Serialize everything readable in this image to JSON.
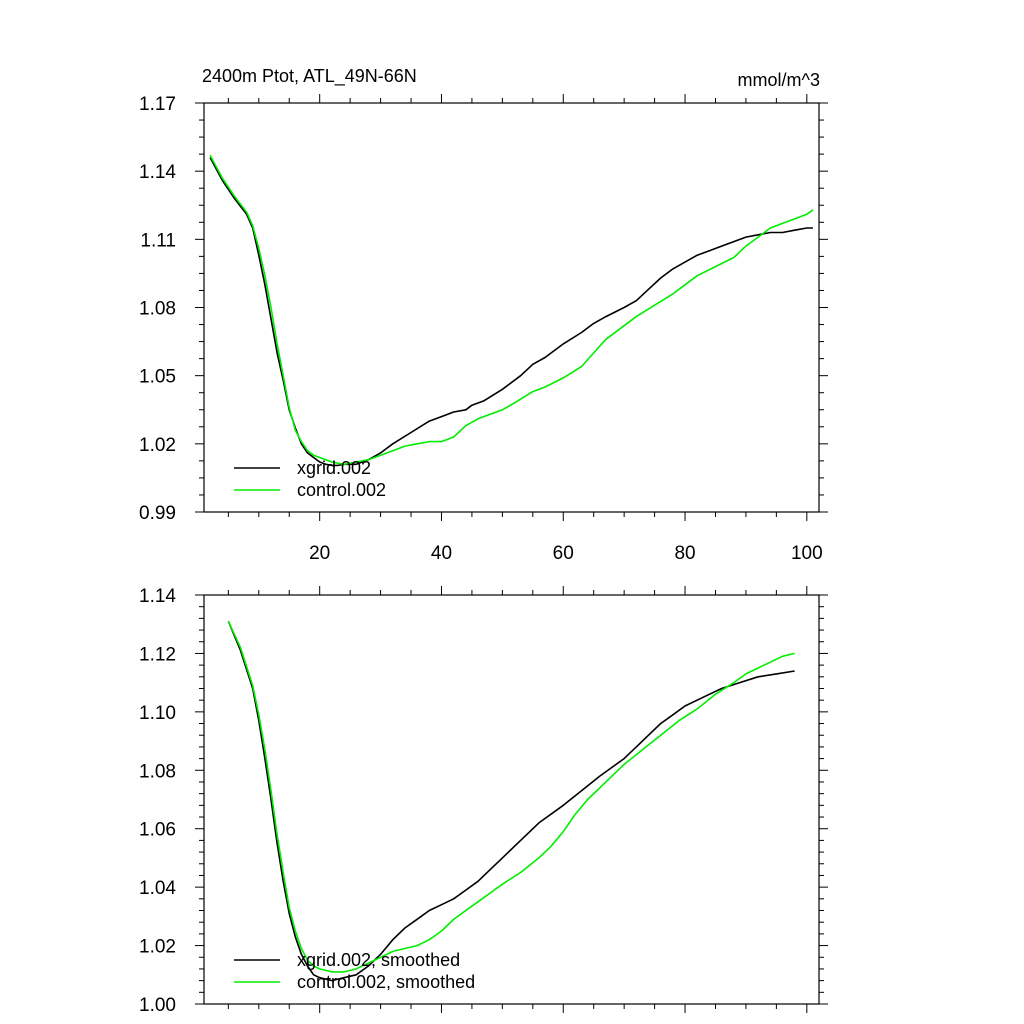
{
  "chart_data": [
    {
      "type": "line",
      "title": "2400m Ptot, ATL_49N-66N",
      "units": "mmol/m^3",
      "xlim": [
        1,
        102
      ],
      "ylim": [
        0.99,
        1.17
      ],
      "xticks": [
        20,
        40,
        60,
        80,
        100
      ],
      "yticks": [
        0.99,
        1.02,
        1.05,
        1.08,
        1.11,
        1.14,
        1.17
      ],
      "ytick_labels": [
        "0.99",
        "1.02",
        "1.05",
        "1.08",
        "1.11",
        "1.14",
        "1.17"
      ],
      "legend_position": "bottom-left",
      "series": [
        {
          "name": "xgrid.002",
          "color": "#000000",
          "points": [
            [
              2,
              1.146
            ],
            [
              4,
              1.136
            ],
            [
              6,
              1.128
            ],
            [
              8,
              1.121
            ],
            [
              9,
              1.115
            ],
            [
              10,
              1.103
            ],
            [
              11,
              1.09
            ],
            [
              12,
              1.075
            ],
            [
              13,
              1.06
            ],
            [
              14,
              1.048
            ],
            [
              15,
              1.035
            ],
            [
              16,
              1.027
            ],
            [
              17,
              1.02
            ],
            [
              18,
              1.016
            ],
            [
              19,
              1.014
            ],
            [
              20,
              1.012
            ],
            [
              21,
              1.011
            ],
            [
              22,
              1.0105
            ],
            [
              23,
              1.0105
            ],
            [
              24,
              1.011
            ],
            [
              26,
              1.011
            ],
            [
              28,
              1.013
            ],
            [
              30,
              1.016
            ],
            [
              32,
              1.02
            ],
            [
              35,
              1.025
            ],
            [
              38,
              1.03
            ],
            [
              40,
              1.032
            ],
            [
              42,
              1.034
            ],
            [
              44,
              1.035
            ],
            [
              45,
              1.037
            ],
            [
              47,
              1.039
            ],
            [
              50,
              1.044
            ],
            [
              53,
              1.05
            ],
            [
              55,
              1.055
            ],
            [
              57,
              1.058
            ],
            [
              60,
              1.064
            ],
            [
              63,
              1.069
            ],
            [
              65,
              1.073
            ],
            [
              67,
              1.076
            ],
            [
              70,
              1.08
            ],
            [
              72,
              1.083
            ],
            [
              74,
              1.088
            ],
            [
              76,
              1.093
            ],
            [
              78,
              1.097
            ],
            [
              80,
              1.1
            ],
            [
              82,
              1.103
            ],
            [
              84,
              1.105
            ],
            [
              86,
              1.107
            ],
            [
              88,
              1.109
            ],
            [
              90,
              1.111
            ],
            [
              92,
              1.112
            ],
            [
              94,
              1.113
            ],
            [
              96,
              1.113
            ],
            [
              98,
              1.114
            ],
            [
              100,
              1.115
            ],
            [
              101,
              1.115
            ]
          ]
        },
        {
          "name": "control.002",
          "color": "#00ee00",
          "points": [
            [
              2,
              1.147
            ],
            [
              4,
              1.137
            ],
            [
              6,
              1.129
            ],
            [
              8,
              1.122
            ],
            [
              9,
              1.116
            ],
            [
              10,
              1.106
            ],
            [
              11,
              1.094
            ],
            [
              12,
              1.08
            ],
            [
              13,
              1.064
            ],
            [
              14,
              1.05
            ],
            [
              15,
              1.036
            ],
            [
              16,
              1.026
            ],
            [
              17,
              1.021
            ],
            [
              18,
              1.017
            ],
            [
              19,
              1.015
            ],
            [
              20,
              1.014
            ],
            [
              22,
              1.012
            ],
            [
              24,
              1.011
            ],
            [
              26,
              1.012
            ],
            [
              28,
              1.013
            ],
            [
              30,
              1.015
            ],
            [
              32,
              1.017
            ],
            [
              34,
              1.019
            ],
            [
              36,
              1.02
            ],
            [
              38,
              1.021
            ],
            [
              40,
              1.021
            ],
            [
              42,
              1.023
            ],
            [
              44,
              1.028
            ],
            [
              46,
              1.031
            ],
            [
              48,
              1.033
            ],
            [
              50,
              1.035
            ],
            [
              52,
              1.038
            ],
            [
              55,
              1.043
            ],
            [
              57,
              1.045
            ],
            [
              60,
              1.049
            ],
            [
              63,
              1.054
            ],
            [
              65,
              1.06
            ],
            [
              67,
              1.066
            ],
            [
              70,
              1.072
            ],
            [
              72,
              1.076
            ],
            [
              75,
              1.081
            ],
            [
              78,
              1.086
            ],
            [
              80,
              1.09
            ],
            [
              82,
              1.094
            ],
            [
              85,
              1.098
            ],
            [
              88,
              1.102
            ],
            [
              90,
              1.107
            ],
            [
              92,
              1.111
            ],
            [
              94,
              1.115
            ],
            [
              96,
              1.117
            ],
            [
              98,
              1.119
            ],
            [
              100,
              1.121
            ],
            [
              101,
              1.123
            ]
          ]
        }
      ]
    },
    {
      "type": "line",
      "title": "",
      "xlim": [
        1,
        102
      ],
      "ylim": [
        1.0,
        1.14
      ],
      "xticks": [
        20,
        40,
        60,
        80,
        100
      ],
      "yticks": [
        1.0,
        1.02,
        1.04,
        1.06,
        1.08,
        1.1,
        1.12,
        1.14
      ],
      "ytick_labels": [
        "1.00",
        "1.02",
        "1.04",
        "1.06",
        "1.08",
        "1.10",
        "1.12",
        "1.14"
      ],
      "legend_position": "bottom-left",
      "series": [
        {
          "name": "xgrid.002, smoothed",
          "color": "#000000",
          "points": [
            [
              5,
              1.131
            ],
            [
              7,
              1.121
            ],
            [
              9,
              1.108
            ],
            [
              10,
              1.097
            ],
            [
              11,
              1.084
            ],
            [
              12,
              1.07
            ],
            [
              13,
              1.055
            ],
            [
              14,
              1.042
            ],
            [
              15,
              1.031
            ],
            [
              16,
              1.023
            ],
            [
              17,
              1.017
            ],
            [
              18,
              1.013
            ],
            [
              19,
              1.01
            ],
            [
              20,
              1.009
            ],
            [
              22,
              1.008
            ],
            [
              24,
              1.009
            ],
            [
              26,
              1.01
            ],
            [
              28,
              1.013
            ],
            [
              30,
              1.017
            ],
            [
              32,
              1.022
            ],
            [
              34,
              1.026
            ],
            [
              36,
              1.029
            ],
            [
              38,
              1.032
            ],
            [
              40,
              1.034
            ],
            [
              42,
              1.036
            ],
            [
              44,
              1.039
            ],
            [
              46,
              1.042
            ],
            [
              48,
              1.046
            ],
            [
              50,
              1.05
            ],
            [
              53,
              1.056
            ],
            [
              56,
              1.062
            ],
            [
              60,
              1.068
            ],
            [
              63,
              1.073
            ],
            [
              66,
              1.078
            ],
            [
              70,
              1.084
            ],
            [
              72,
              1.088
            ],
            [
              74,
              1.092
            ],
            [
              76,
              1.096
            ],
            [
              78,
              1.099
            ],
            [
              80,
              1.102
            ],
            [
              83,
              1.105
            ],
            [
              86,
              1.108
            ],
            [
              89,
              1.11
            ],
            [
              92,
              1.112
            ],
            [
              95,
              1.113
            ],
            [
              98,
              1.114
            ]
          ]
        },
        {
          "name": "control.002, smoothed",
          "color": "#00ee00",
          "points": [
            [
              5,
              1.131
            ],
            [
              7,
              1.122
            ],
            [
              9,
              1.109
            ],
            [
              10,
              1.099
            ],
            [
              11,
              1.087
            ],
            [
              12,
              1.073
            ],
            [
              13,
              1.058
            ],
            [
              14,
              1.045
            ],
            [
              15,
              1.033
            ],
            [
              16,
              1.025
            ],
            [
              17,
              1.019
            ],
            [
              18,
              1.015
            ],
            [
              19,
              1.013
            ],
            [
              20,
              1.012
            ],
            [
              22,
              1.011
            ],
            [
              24,
              1.011
            ],
            [
              26,
              1.012
            ],
            [
              28,
              1.014
            ],
            [
              30,
              1.016
            ],
            [
              32,
              1.018
            ],
            [
              34,
              1.019
            ],
            [
              36,
              1.02
            ],
            [
              38,
              1.022
            ],
            [
              40,
              1.025
            ],
            [
              42,
              1.029
            ],
            [
              44,
              1.032
            ],
            [
              46,
              1.035
            ],
            [
              48,
              1.038
            ],
            [
              50,
              1.041
            ],
            [
              53,
              1.045
            ],
            [
              56,
              1.05
            ],
            [
              58,
              1.054
            ],
            [
              60,
              1.059
            ],
            [
              62,
              1.065
            ],
            [
              64,
              1.07
            ],
            [
              66,
              1.074
            ],
            [
              68,
              1.078
            ],
            [
              70,
              1.082
            ],
            [
              73,
              1.087
            ],
            [
              76,
              1.092
            ],
            [
              79,
              1.097
            ],
            [
              82,
              1.101
            ],
            [
              85,
              1.106
            ],
            [
              88,
              1.11
            ],
            [
              90,
              1.113
            ],
            [
              92,
              1.115
            ],
            [
              94,
              1.117
            ],
            [
              96,
              1.119
            ],
            [
              98,
              1.12
            ]
          ]
        }
      ]
    }
  ]
}
